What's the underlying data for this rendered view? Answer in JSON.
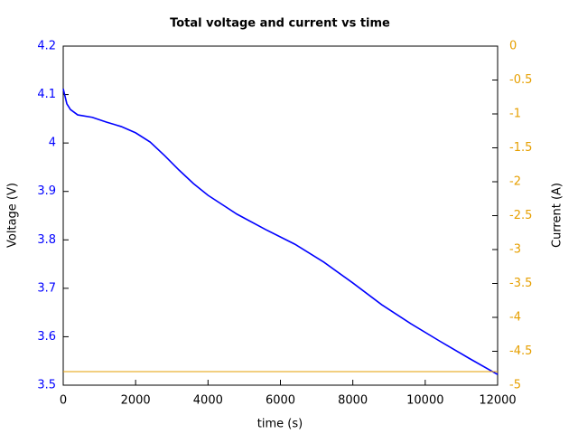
{
  "chart_data": {
    "type": "line",
    "title": "Total voltage and current vs time",
    "xlabel": "time (s)",
    "ylabel": "Voltage (V)",
    "y2label": "Current (A)",
    "x": [
      0,
      100,
      200,
      400,
      800,
      1200,
      1600,
      2000,
      2400,
      2800,
      3200,
      3600,
      4000,
      4800,
      5600,
      6400,
      7200,
      8000,
      8800,
      9600,
      10400,
      11200,
      12000
    ],
    "series": [
      {
        "name": "Voltage",
        "color": "#0000ff",
        "axis": "y",
        "values": [
          4.112,
          4.081,
          4.069,
          4.058,
          4.053,
          4.043,
          4.034,
          4.021,
          4.002,
          3.974,
          3.944,
          3.916,
          3.892,
          3.853,
          3.821,
          3.791,
          3.754,
          3.711,
          3.666,
          3.627,
          3.591,
          3.556,
          3.522
        ]
      },
      {
        "name": "Current",
        "color": "#e69f00",
        "axis": "y2",
        "values": [
          -4.8,
          -4.8,
          -4.8,
          -4.8,
          -4.8,
          -4.8,
          -4.8,
          -4.8,
          -4.8,
          -4.8,
          -4.8,
          -4.8,
          -4.8,
          -4.8,
          -4.8,
          -4.8,
          -4.8,
          -4.8,
          -4.8,
          -4.8,
          -4.8,
          -4.8,
          -4.8
        ]
      }
    ],
    "xlim": [
      0,
      12000
    ],
    "xticks": [
      0,
      2000,
      4000,
      6000,
      8000,
      10000,
      12000
    ],
    "ylim": [
      3.5,
      4.2
    ],
    "yticks": [
      3.5,
      3.6,
      3.7,
      3.8,
      3.9,
      4,
      4.1,
      4.2
    ],
    "y2lim": [
      -5,
      0
    ],
    "y2ticks": [
      -5,
      -4.5,
      -4,
      -3.5,
      -3,
      -2.5,
      -2,
      -1.5,
      -1,
      -0.5,
      0
    ]
  }
}
